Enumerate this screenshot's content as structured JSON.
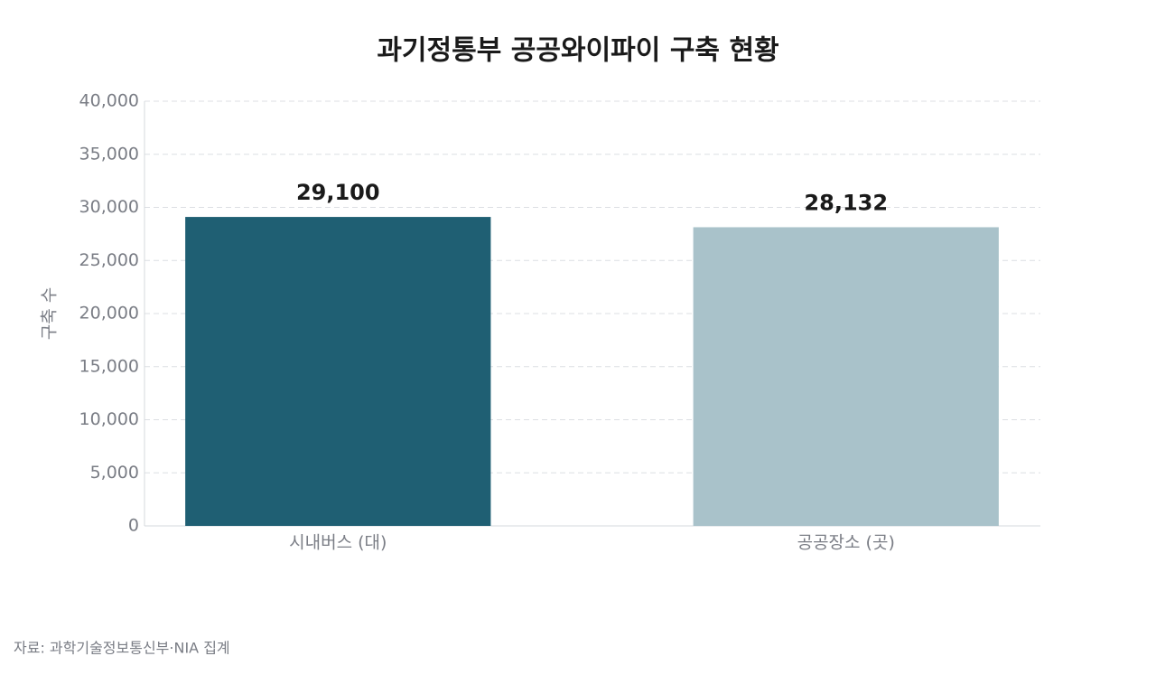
{
  "chart_data": {
    "type": "bar",
    "title": "과기정통부 공공와이파이 구축 현황",
    "categories": [
      "시내버스 (대)",
      "공공장소 (곳)"
    ],
    "values": [
      29100,
      28132
    ],
    "value_labels": [
      "29,100",
      "28,132"
    ],
    "colors": [
      "#1f5f73",
      "#a9c2ca"
    ],
    "ylabel": "구축 수",
    "ylim": [
      0,
      40000
    ],
    "yticks": [
      0,
      {
        "value": 5000,
        "label": "5,000"
      },
      {
        "value": 10000,
        "label": "10,000"
      },
      {
        "value": 15000,
        "label": "15,000"
      },
      {
        "value": 20000,
        "label": "20,000"
      },
      {
        "value": 25000,
        "label": "25,000"
      },
      {
        "value": 30000,
        "label": "30,000"
      },
      {
        "value": 35000,
        "label": "35,000"
      },
      {
        "value": 40000,
        "label": "40,000"
      }
    ],
    "grid": true,
    "source": "자료: 과학기술정보통신부·NIA 집계"
  }
}
